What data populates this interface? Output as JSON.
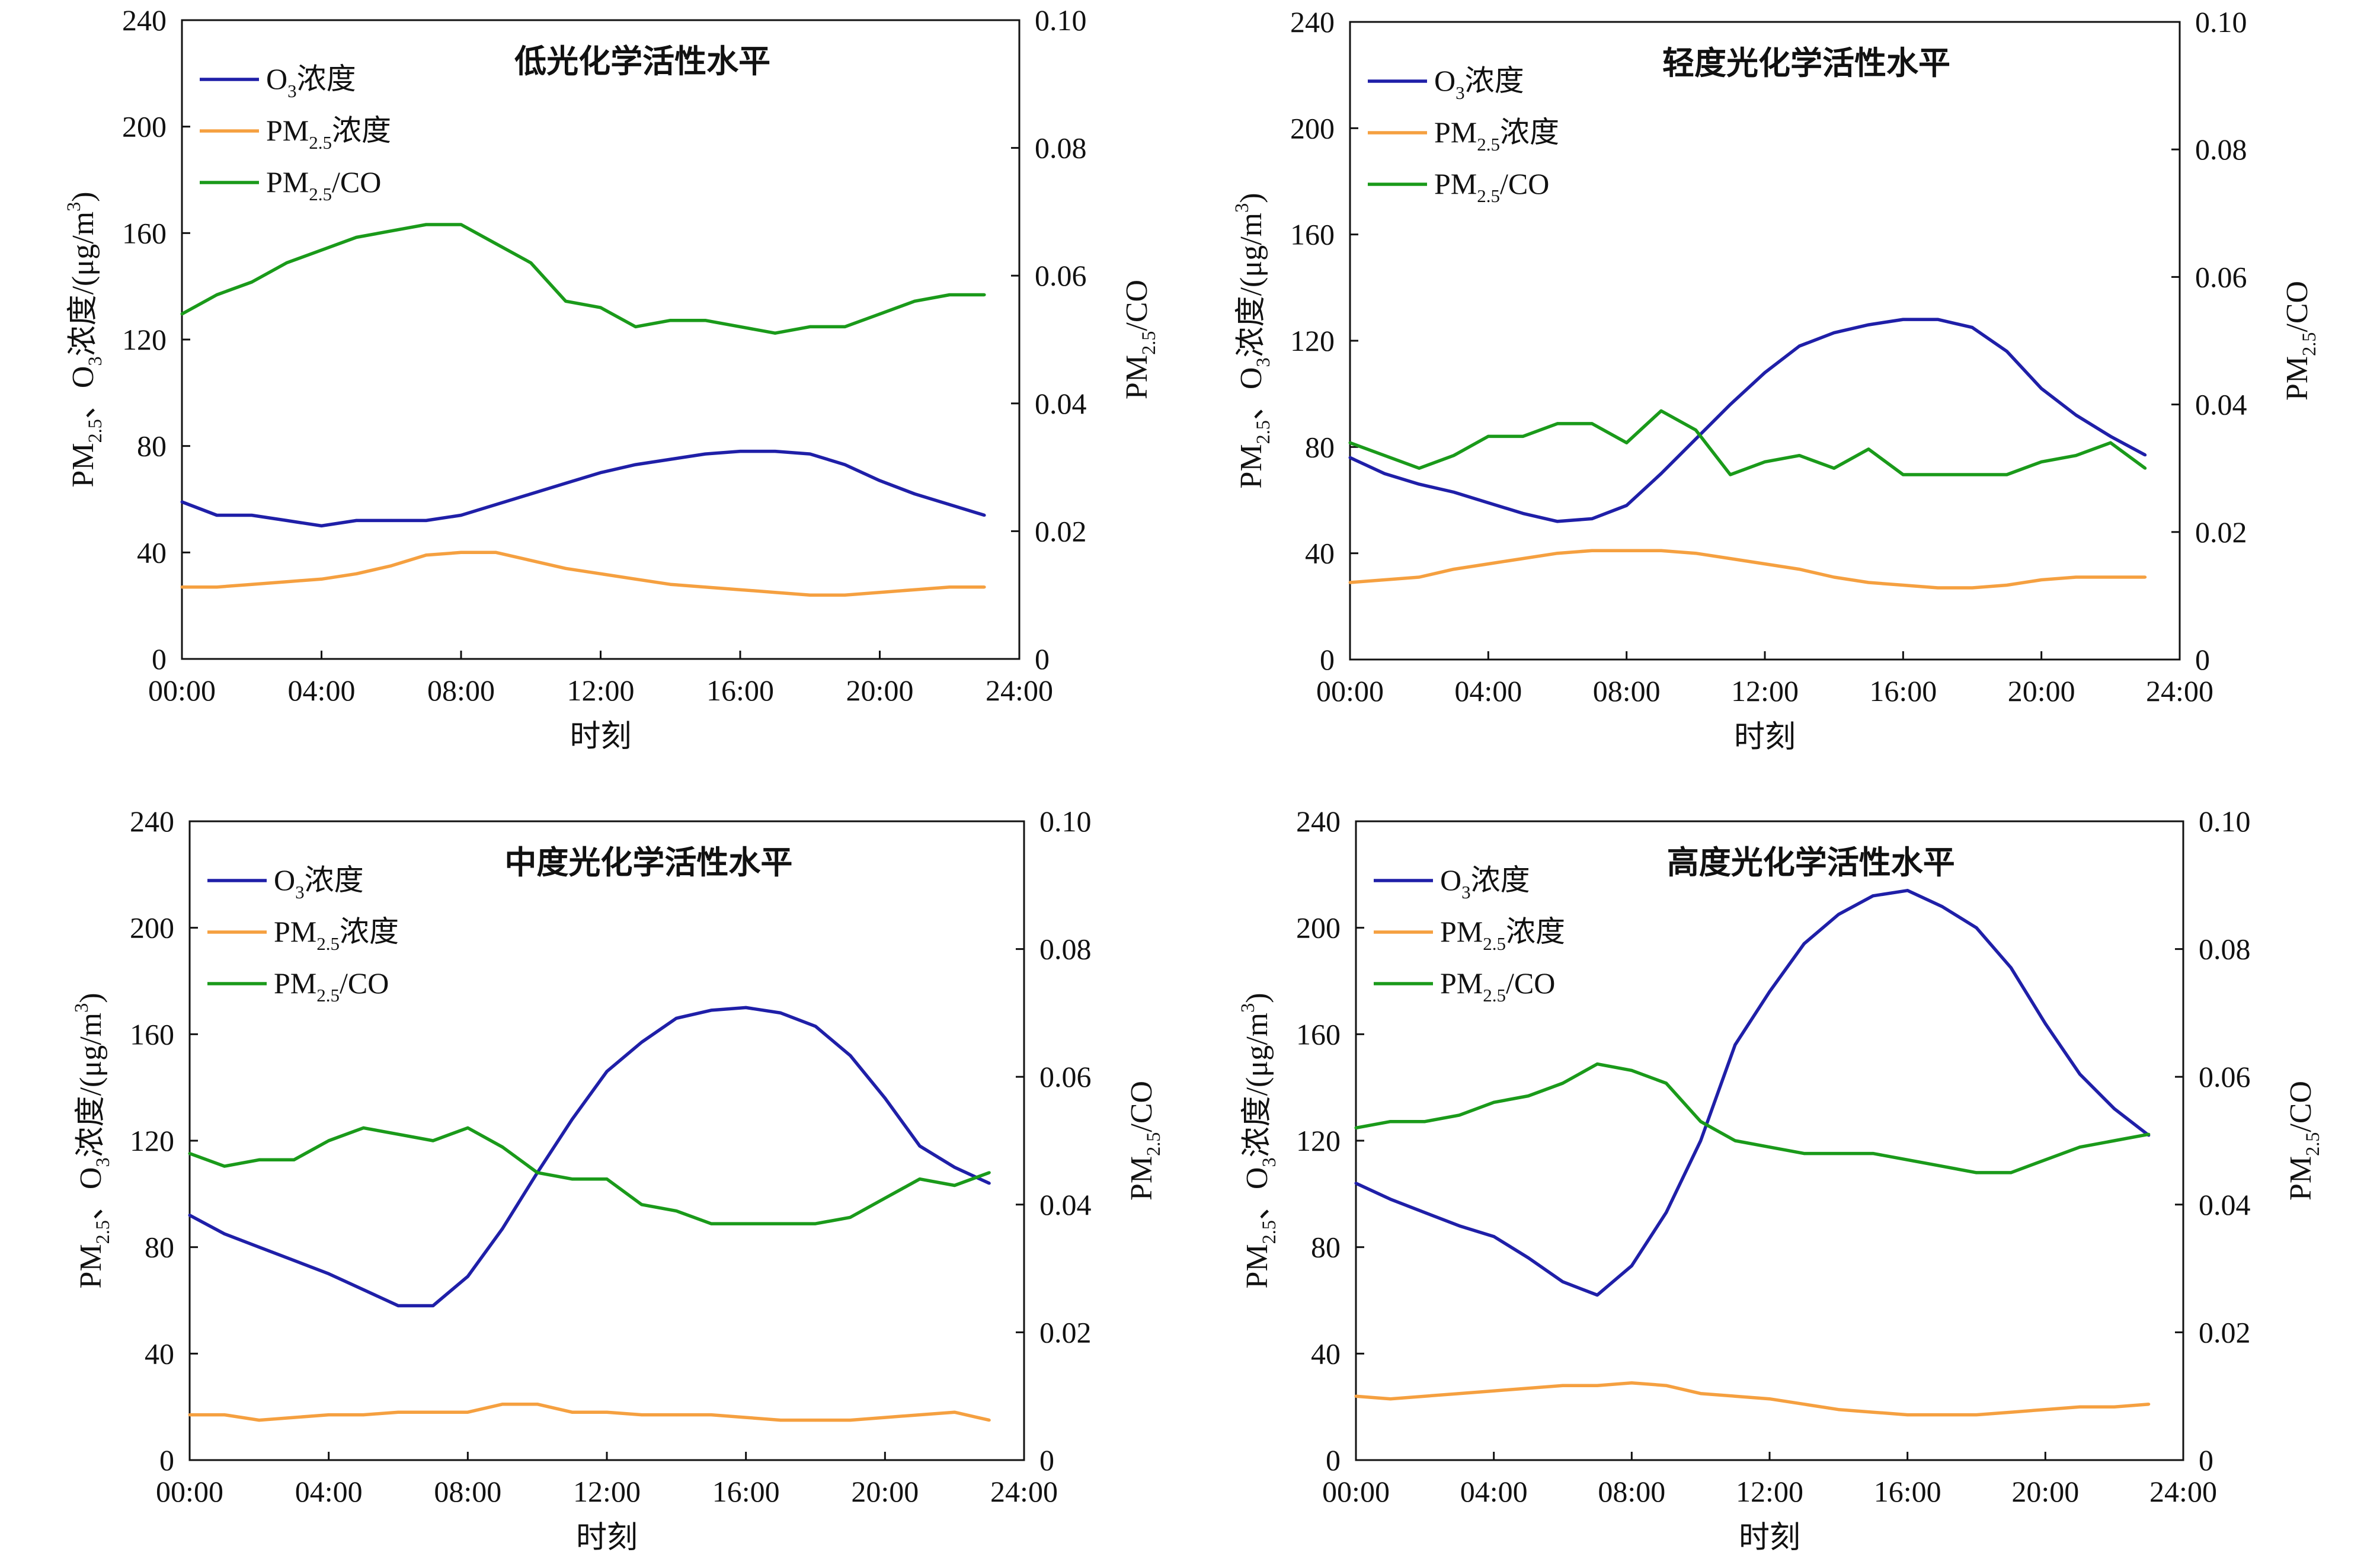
{
  "chart_data": [
    {
      "type": "line",
      "title": "低光化学活性水平",
      "xlabel": "时刻",
      "ylabel_left": "PM2.5、O3浓度/(μg/m3)",
      "ylabel_right": "PM2.5/CO",
      "x_ticks": [
        "00:00",
        "04:00",
        "08:00",
        "12:00",
        "16:00",
        "20:00",
        "24:00"
      ],
      "y_left_ticks": [
        "0",
        "40",
        "80",
        "120",
        "160",
        "200",
        "240"
      ],
      "y_right_ticks": [
        "0",
        "0.02",
        "0.04",
        "0.06",
        "0.08",
        "0.10"
      ],
      "xlim": [
        0,
        24
      ],
      "ylim_left": [
        0,
        240
      ],
      "ylim_right": [
        0,
        0.1
      ],
      "legend_position": "top-left",
      "x": [
        0,
        1,
        2,
        3,
        4,
        5,
        6,
        7,
        8,
        9,
        10,
        11,
        12,
        13,
        14,
        15,
        16,
        17,
        18,
        19,
        20,
        21,
        22,
        23
      ],
      "series": [
        {
          "name": "O3浓度",
          "axis": "left",
          "color": "#1f1fa8",
          "values": [
            59,
            54,
            54,
            52,
            50,
            52,
            52,
            52,
            54,
            58,
            62,
            66,
            70,
            73,
            75,
            77,
            78,
            78,
            77,
            73,
            67,
            62,
            58,
            54
          ]
        },
        {
          "name": "PM2.5浓度",
          "axis": "left",
          "color": "#f5a040",
          "values": [
            27,
            27,
            28,
            29,
            30,
            32,
            35,
            39,
            40,
            40,
            37,
            34,
            32,
            30,
            28,
            27,
            26,
            25,
            24,
            24,
            25,
            26,
            27,
            27
          ]
        },
        {
          "name": "PM2.5/CO",
          "axis": "right",
          "color": "#1a9a1a",
          "values": [
            0.054,
            0.057,
            0.059,
            0.062,
            0.064,
            0.066,
            0.067,
            0.068,
            0.068,
            0.065,
            0.062,
            0.056,
            0.055,
            0.052,
            0.053,
            0.053,
            0.052,
            0.051,
            0.052,
            0.052,
            0.054,
            0.056,
            0.057,
            0.057
          ]
        }
      ]
    },
    {
      "type": "line",
      "title": "轻度光化学活性水平",
      "xlabel": "时刻",
      "ylabel_left": "PM2.5、O3浓度/(μg/m3)",
      "ylabel_right": "PM2.5/CO",
      "x_ticks": [
        "00:00",
        "04:00",
        "08:00",
        "12:00",
        "16:00",
        "20:00",
        "24:00"
      ],
      "y_left_ticks": [
        "0",
        "40",
        "80",
        "120",
        "160",
        "200",
        "240"
      ],
      "y_right_ticks": [
        "0",
        "0.02",
        "0.04",
        "0.06",
        "0.08",
        "0.10"
      ],
      "xlim": [
        0,
        24
      ],
      "ylim_left": [
        0,
        240
      ],
      "ylim_right": [
        0,
        0.1
      ],
      "legend_position": "top-left",
      "x": [
        0,
        1,
        2,
        3,
        4,
        5,
        6,
        7,
        8,
        9,
        10,
        11,
        12,
        13,
        14,
        15,
        16,
        17,
        18,
        19,
        20,
        21,
        22,
        23
      ],
      "series": [
        {
          "name": "O3浓度",
          "axis": "left",
          "color": "#1f1fa8",
          "values": [
            76,
            70,
            66,
            63,
            59,
            55,
            52,
            53,
            58,
            70,
            83,
            96,
            108,
            118,
            123,
            126,
            128,
            128,
            125,
            116,
            102,
            92,
            84,
            77
          ]
        },
        {
          "name": "PM2.5浓度",
          "axis": "left",
          "color": "#f5a040",
          "values": [
            29,
            30,
            31,
            34,
            36,
            38,
            40,
            41,
            41,
            41,
            40,
            38,
            36,
            34,
            31,
            29,
            28,
            27,
            27,
            28,
            30,
            31,
            31,
            31
          ]
        },
        {
          "name": "PM2.5/CO",
          "axis": "right",
          "color": "#1a9a1a",
          "values": [
            0.034,
            0.032,
            0.03,
            0.032,
            0.035,
            0.035,
            0.037,
            0.037,
            0.034,
            0.039,
            0.036,
            0.029,
            0.031,
            0.032,
            0.03,
            0.033,
            0.029,
            0.029,
            0.029,
            0.029,
            0.031,
            0.032,
            0.034,
            0.03
          ]
        }
      ]
    },
    {
      "type": "line",
      "title": "中度光化学活性水平",
      "xlabel": "时刻",
      "ylabel_left": "PM2.5、O3浓度/(μg/m3)",
      "ylabel_right": "PM2.5/CO",
      "x_ticks": [
        "00:00",
        "04:00",
        "08:00",
        "12:00",
        "16:00",
        "20:00",
        "24:00"
      ],
      "y_left_ticks": [
        "0",
        "40",
        "80",
        "120",
        "160",
        "200",
        "240"
      ],
      "y_right_ticks": [
        "0",
        "0.02",
        "0.04",
        "0.06",
        "0.08",
        "0.10"
      ],
      "xlim": [
        0,
        24
      ],
      "ylim_left": [
        0,
        240
      ],
      "ylim_right": [
        0,
        0.1
      ],
      "legend_position": "top-left",
      "x": [
        0,
        1,
        2,
        3,
        4,
        5,
        6,
        7,
        8,
        9,
        10,
        11,
        12,
        13,
        14,
        15,
        16,
        17,
        18,
        19,
        20,
        21,
        22,
        23
      ],
      "series": [
        {
          "name": "O3浓度",
          "axis": "left",
          "color": "#1f1fa8",
          "values": [
            92,
            85,
            80,
            75,
            70,
            64,
            58,
            58,
            69,
            87,
            108,
            128,
            146,
            157,
            166,
            169,
            170,
            168,
            163,
            152,
            136,
            118,
            110,
            104
          ]
        },
        {
          "name": "PM2.5浓度",
          "axis": "left",
          "color": "#f5a040",
          "values": [
            17,
            17,
            15,
            16,
            17,
            17,
            18,
            18,
            18,
            21,
            21,
            18,
            18,
            17,
            17,
            17,
            16,
            15,
            15,
            15,
            16,
            17,
            18,
            15
          ]
        },
        {
          "name": "PM2.5/CO",
          "axis": "right",
          "color": "#1a9a1a",
          "values": [
            0.048,
            0.046,
            0.047,
            0.047,
            0.05,
            0.052,
            0.051,
            0.05,
            0.052,
            0.049,
            0.045,
            0.044,
            0.044,
            0.04,
            0.039,
            0.037,
            0.037,
            0.037,
            0.037,
            0.038,
            0.041,
            0.044,
            0.043,
            0.045
          ]
        }
      ]
    },
    {
      "type": "line",
      "title": "高度光化学活性水平",
      "xlabel": "时刻",
      "ylabel_left": "PM2.5、O3浓度/(μg/m3)",
      "ylabel_right": "PM2.5/CO",
      "x_ticks": [
        "00:00",
        "04:00",
        "08:00",
        "12:00",
        "16:00",
        "20:00",
        "24:00"
      ],
      "y_left_ticks": [
        "0",
        "40",
        "80",
        "120",
        "160",
        "200",
        "240"
      ],
      "y_right_ticks": [
        "0",
        "0.02",
        "0.04",
        "0.06",
        "0.08",
        "0.10"
      ],
      "xlim": [
        0,
        24
      ],
      "ylim_left": [
        0,
        240
      ],
      "ylim_right": [
        0,
        0.1
      ],
      "legend_position": "top-left",
      "x": [
        0,
        1,
        2,
        3,
        4,
        5,
        6,
        7,
        8,
        9,
        10,
        11,
        12,
        13,
        14,
        15,
        16,
        17,
        18,
        19,
        20,
        21,
        22,
        23
      ],
      "series": [
        {
          "name": "O3浓度",
          "axis": "left",
          "color": "#1f1fa8",
          "values": [
            104,
            98,
            93,
            88,
            84,
            76,
            67,
            62,
            73,
            93,
            120,
            156,
            176,
            194,
            205,
            212,
            214,
            208,
            200,
            185,
            164,
            145,
            132,
            122
          ]
        },
        {
          "name": "PM2.5浓度",
          "axis": "left",
          "color": "#f5a040",
          "values": [
            24,
            23,
            24,
            25,
            26,
            27,
            28,
            28,
            29,
            28,
            25,
            24,
            23,
            21,
            19,
            18,
            17,
            17,
            17,
            18,
            19,
            20,
            20,
            21
          ]
        },
        {
          "name": "PM2.5/CO",
          "axis": "right",
          "color": "#1a9a1a",
          "values": [
            0.052,
            0.053,
            0.053,
            0.054,
            0.056,
            0.057,
            0.059,
            0.062,
            0.061,
            0.059,
            0.053,
            0.05,
            0.049,
            0.048,
            0.048,
            0.048,
            0.047,
            0.046,
            0.045,
            0.045,
            0.047,
            0.049,
            0.05,
            0.051
          ]
        }
      ]
    }
  ]
}
